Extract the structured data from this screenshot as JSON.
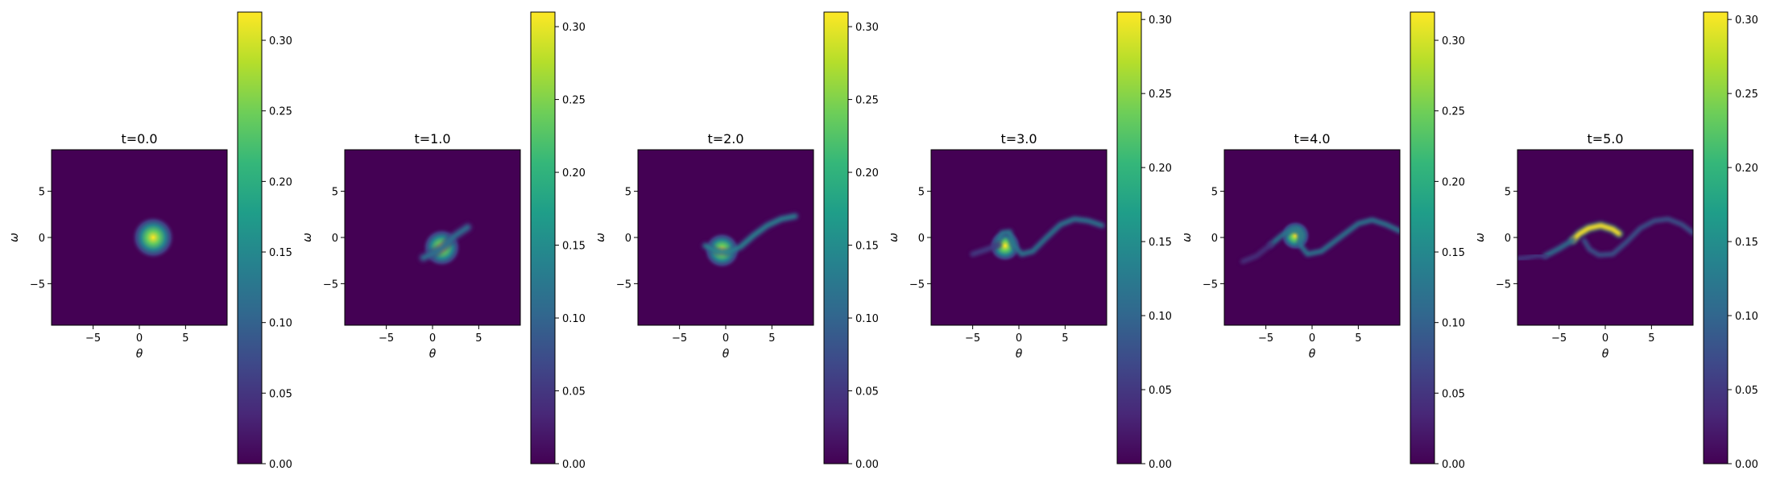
{
  "colorbar_colors": [
    "#440154",
    "#482878",
    "#3e4989",
    "#31688e",
    "#26828e",
    "#1f9e89",
    "#35b779",
    "#6ece58",
    "#b5de2b",
    "#fde725"
  ],
  "background_color": "#440154",
  "chart_data": [
    {
      "type": "heatmap",
      "title": "t=0.0",
      "xlabel": "θ",
      "ylabel": "ω",
      "xlim": [
        -9.5,
        9.5
      ],
      "ylim": [
        -9.5,
        9.5
      ],
      "xticks": [
        -5,
        0,
        5
      ],
      "yticks": [
        -5,
        0,
        5
      ],
      "colorbar": {
        "vmin": 0.0,
        "vmax": 0.32,
        "ticks": [
          "0.00",
          "0.05",
          "0.10",
          "0.15",
          "0.20",
          "0.25",
          "0.30"
        ]
      },
      "features": [
        {
          "shape": "blob",
          "points": [
            [
              1.5,
              0.0
            ]
          ],
          "width": 1.0,
          "peak": 0.32
        }
      ]
    },
    {
      "type": "heatmap",
      "title": "t=1.0",
      "xlabel": "θ",
      "ylabel": "ω",
      "xlim": [
        -9.5,
        9.5
      ],
      "ylim": [
        -9.5,
        9.5
      ],
      "xticks": [
        -5,
        0,
        5
      ],
      "yticks": [
        -5,
        0,
        5
      ],
      "colorbar": {
        "vmin": 0.0,
        "vmax": 0.31,
        "ticks": [
          "0.00",
          "0.05",
          "0.10",
          "0.15",
          "0.20",
          "0.25",
          "0.30"
        ]
      },
      "features": [
        {
          "shape": "blob",
          "points": [
            [
              1.0,
              -1.1
            ]
          ],
          "width": 0.9,
          "peak": 0.31
        },
        {
          "shape": "filament",
          "points": [
            [
              -1.0,
              -2.2
            ],
            [
              0.3,
              -1.6
            ],
            [
              1.2,
              -1.0
            ],
            [
              2.3,
              0.1
            ],
            [
              3.8,
              1.1
            ]
          ],
          "width": 0.5,
          "peak": 0.11
        }
      ]
    },
    {
      "type": "heatmap",
      "title": "t=2.0",
      "xlabel": "θ",
      "ylabel": "ω",
      "xlim": [
        -9.5,
        9.5
      ],
      "ylim": [
        -9.5,
        9.5
      ],
      "xticks": [
        -5,
        0,
        5
      ],
      "yticks": [
        -5,
        0,
        5
      ],
      "colorbar": {
        "vmin": 0.0,
        "vmax": 0.31,
        "ticks": [
          "0.00",
          "0.05",
          "0.10",
          "0.15",
          "0.20",
          "0.25",
          "0.30"
        ]
      },
      "features": [
        {
          "shape": "blob",
          "points": [
            [
              -0.4,
              -1.4
            ]
          ],
          "width": 0.85,
          "peak": 0.31
        },
        {
          "shape": "filament",
          "points": [
            [
              -2.2,
              -0.9
            ],
            [
              -1.0,
              -1.5
            ],
            [
              0.3,
              -1.6
            ],
            [
              1.6,
              -1.0
            ],
            [
              3.0,
              0.2
            ],
            [
              4.5,
              1.3
            ],
            [
              6.0,
              2.0
            ],
            [
              7.5,
              2.3
            ]
          ],
          "width": 0.4,
          "peak": 0.14
        }
      ]
    },
    {
      "type": "heatmap",
      "title": "t=3.0",
      "xlabel": "θ",
      "ylabel": "ω",
      "xlim": [
        -9.5,
        9.5
      ],
      "ylim": [
        -9.5,
        9.5
      ],
      "xticks": [
        -5,
        0,
        5
      ],
      "yticks": [
        -5,
        0,
        5
      ],
      "colorbar": {
        "vmin": 0.0,
        "vmax": 0.305,
        "ticks": [
          "0.00",
          "0.05",
          "0.10",
          "0.15",
          "0.20",
          "0.25",
          "0.30"
        ]
      },
      "features": [
        {
          "shape": "blob",
          "points": [
            [
              -1.5,
              -0.9
            ]
          ],
          "width": 0.75,
          "peak": 0.305
        },
        {
          "shape": "filament",
          "points": [
            [
              -2.2,
              -0.2
            ],
            [
              -1.8,
              0.5
            ],
            [
              -1.0,
              0.6
            ],
            [
              -0.6,
              -0.8
            ],
            [
              0.3,
              -1.8
            ],
            [
              1.5,
              -1.5
            ],
            [
              3.0,
              0.0
            ],
            [
              4.5,
              1.4
            ],
            [
              6.0,
              2.0
            ],
            [
              7.5,
              1.8
            ],
            [
              9.0,
              1.3
            ]
          ],
          "width": 0.35,
          "peak": 0.13
        },
        {
          "shape": "filament",
          "points": [
            [
              -5.0,
              -1.8
            ],
            [
              -3.5,
              -1.3
            ],
            [
              -2.2,
              -0.8
            ]
          ],
          "width": 0.35,
          "peak": 0.06
        }
      ]
    },
    {
      "type": "heatmap",
      "title": "t=4.0",
      "xlabel": "θ",
      "ylabel": "ω",
      "xlim": [
        -9.5,
        9.5
      ],
      "ylim": [
        -9.5,
        9.5
      ],
      "xticks": [
        -5,
        0,
        5
      ],
      "yticks": [
        -5,
        0,
        5
      ],
      "colorbar": {
        "vmin": 0.0,
        "vmax": 0.32,
        "ticks": [
          "0.00",
          "0.05",
          "0.10",
          "0.15",
          "0.20",
          "0.25",
          "0.30"
        ]
      },
      "features": [
        {
          "shape": "blob",
          "points": [
            [
              -1.8,
              0.2
            ]
          ],
          "width": 0.7,
          "peak": 0.32
        },
        {
          "shape": "filament",
          "points": [
            [
              -4.5,
              -0.8
            ],
            [
              -3.2,
              0.3
            ],
            [
              -2.0,
              0.9
            ],
            [
              -1.2,
              0.5
            ],
            [
              -1.3,
              -0.8
            ],
            [
              -0.5,
              -1.8
            ],
            [
              1.0,
              -1.5
            ],
            [
              3.0,
              0.0
            ],
            [
              5.0,
              1.5
            ],
            [
              6.5,
              1.9
            ],
            [
              8.0,
              1.4
            ],
            [
              9.5,
              0.7
            ]
          ],
          "width": 0.33,
          "peak": 0.14
        },
        {
          "shape": "filament",
          "points": [
            [
              -7.5,
              -2.6
            ],
            [
              -6.0,
              -2.0
            ],
            [
              -4.5,
              -0.8
            ]
          ],
          "width": 0.33,
          "peak": 0.05
        }
      ]
    },
    {
      "type": "heatmap",
      "title": "t=5.0",
      "xlabel": "θ",
      "ylabel": "ω",
      "xlim": [
        -9.5,
        9.5
      ],
      "ylim": [
        -9.5,
        9.5
      ],
      "xticks": [
        -5,
        0,
        5
      ],
      "yticks": [
        -5,
        0,
        5
      ],
      "colorbar": {
        "vmin": 0.0,
        "vmax": 0.305,
        "ticks": [
          "0.00",
          "0.05",
          "0.10",
          "0.15",
          "0.20",
          "0.25",
          "0.30"
        ]
      },
      "features": [
        {
          "shape": "filament",
          "points": [
            [
              -3.5,
              -0.3
            ],
            [
              -2.8,
              0.4
            ],
            [
              -1.8,
              1.0
            ],
            [
              -0.5,
              1.3
            ],
            [
              0.8,
              0.9
            ],
            [
              1.5,
              0.4
            ]
          ],
          "width": 0.45,
          "peak": 0.305
        },
        {
          "shape": "filament",
          "points": [
            [
              -6.5,
              -2.0
            ],
            [
              -5.0,
              -1.2
            ],
            [
              -3.5,
              -0.3
            ]
          ],
          "width": 0.35,
          "peak": 0.12
        },
        {
          "shape": "filament",
          "points": [
            [
              -9.5,
              -2.3
            ],
            [
              -8.5,
              -2.2
            ],
            [
              -7.5,
              -2.0
            ],
            [
              -6.5,
              -2.0
            ]
          ],
          "width": 0.3,
          "peak": 0.06
        },
        {
          "shape": "filament",
          "points": [
            [
              -2.3,
              -0.3
            ],
            [
              -1.7,
              -1.3
            ],
            [
              -0.7,
              -1.9
            ],
            [
              0.8,
              -1.8
            ],
            [
              2.3,
              -0.5
            ],
            [
              3.8,
              1.0
            ],
            [
              5.3,
              1.8
            ],
            [
              6.8,
              2.0
            ],
            [
              8.3,
              1.4
            ],
            [
              9.5,
              0.5
            ]
          ],
          "width": 0.3,
          "peak": 0.09
        }
      ]
    }
  ]
}
